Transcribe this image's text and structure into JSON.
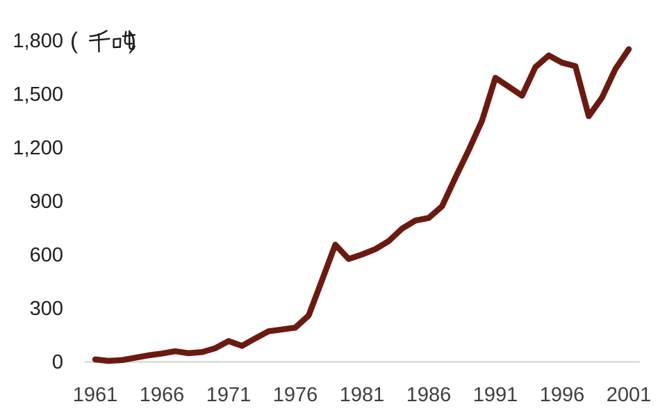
{
  "chart_data": {
    "type": "line",
    "title": "",
    "unit": "(千吨)",
    "xlabel": "",
    "ylabel": "",
    "x": [
      1961,
      1962,
      1963,
      1964,
      1965,
      1966,
      1967,
      1968,
      1969,
      1970,
      1971,
      1972,
      1973,
      1974,
      1975,
      1976,
      1977,
      1978,
      1979,
      1980,
      1981,
      1982,
      1983,
      1984,
      1985,
      1986,
      1987,
      1988,
      1989,
      1990,
      1991,
      1992,
      1993,
      1994,
      1995,
      1996,
      1997,
      1998,
      1999,
      2000,
      2001
    ],
    "values": [
      12,
      4,
      8,
      22,
      35,
      45,
      58,
      47,
      53,
      75,
      115,
      88,
      130,
      170,
      180,
      190,
      258,
      455,
      655,
      575,
      600,
      630,
      675,
      745,
      790,
      805,
      870,
      1030,
      1185,
      1350,
      1590,
      1540,
      1490,
      1650,
      1715,
      1675,
      1655,
      1375,
      1480,
      1640,
      1750
    ],
    "x_ticks": [
      1961,
      1966,
      1971,
      1976,
      1981,
      1986,
      1991,
      1996,
      2001
    ],
    "y_ticks": [
      0,
      300,
      600,
      900,
      1200,
      1500,
      1800
    ],
    "y_tick_labels": [
      "0",
      "300",
      "600",
      "900",
      "1,200",
      "1,500",
      "1,800"
    ],
    "ylim": [
      0,
      1800
    ],
    "xlim": [
      1961,
      2001
    ],
    "grid": false,
    "legend": false,
    "line_color": "#6b1a11",
    "axis_line_color": "#d9d9d9",
    "y_tick_color": "#1f1f1f",
    "x_tick_color": "#3f3f3f",
    "background": "#ffffff"
  }
}
